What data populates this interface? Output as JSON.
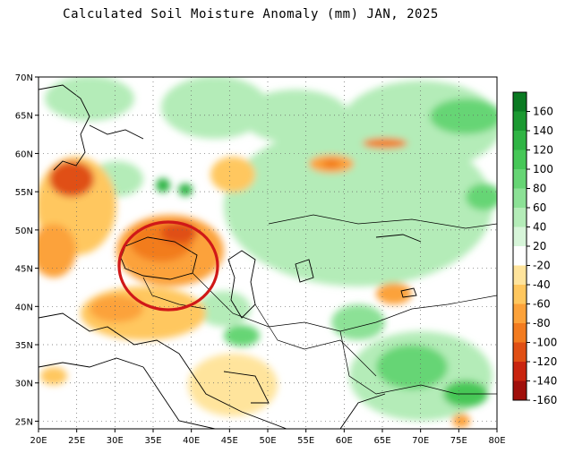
{
  "title": "Calculated Soil Moisture Anomaly (mm) JAN, 2025",
  "map": {
    "lon_min": 20,
    "lon_max": 80,
    "lat_min": 24,
    "lat_max": 70,
    "lon_ticks": [
      20,
      25,
      30,
      35,
      40,
      45,
      50,
      55,
      60,
      65,
      70,
      75,
      80
    ],
    "lat_ticks": [
      25,
      30,
      35,
      40,
      45,
      50,
      55,
      60,
      65,
      70
    ],
    "lon_suffix": "E",
    "lat_suffix": "N",
    "grid": "dotted"
  },
  "colorbar": {
    "labels": [
      "160",
      "140",
      "120",
      "100",
      "80",
      "60",
      "40",
      "20",
      "-20",
      "-40",
      "-60",
      "-80",
      "-100",
      "-120",
      "-140",
      "-160"
    ],
    "colors": [
      "#0a7a22",
      "#1b9931",
      "#2fb444",
      "#46c757",
      "#66d574",
      "#8ce196",
      "#b4ecb8",
      "#d7f5d9",
      "#ffffff",
      "#ffe49c",
      "#ffc75e",
      "#fca23a",
      "#f27b1f",
      "#e04f14",
      "#c9240f",
      "#a00f0b"
    ]
  },
  "annotation": {
    "type": "circle",
    "color": "#d01818"
  }
}
